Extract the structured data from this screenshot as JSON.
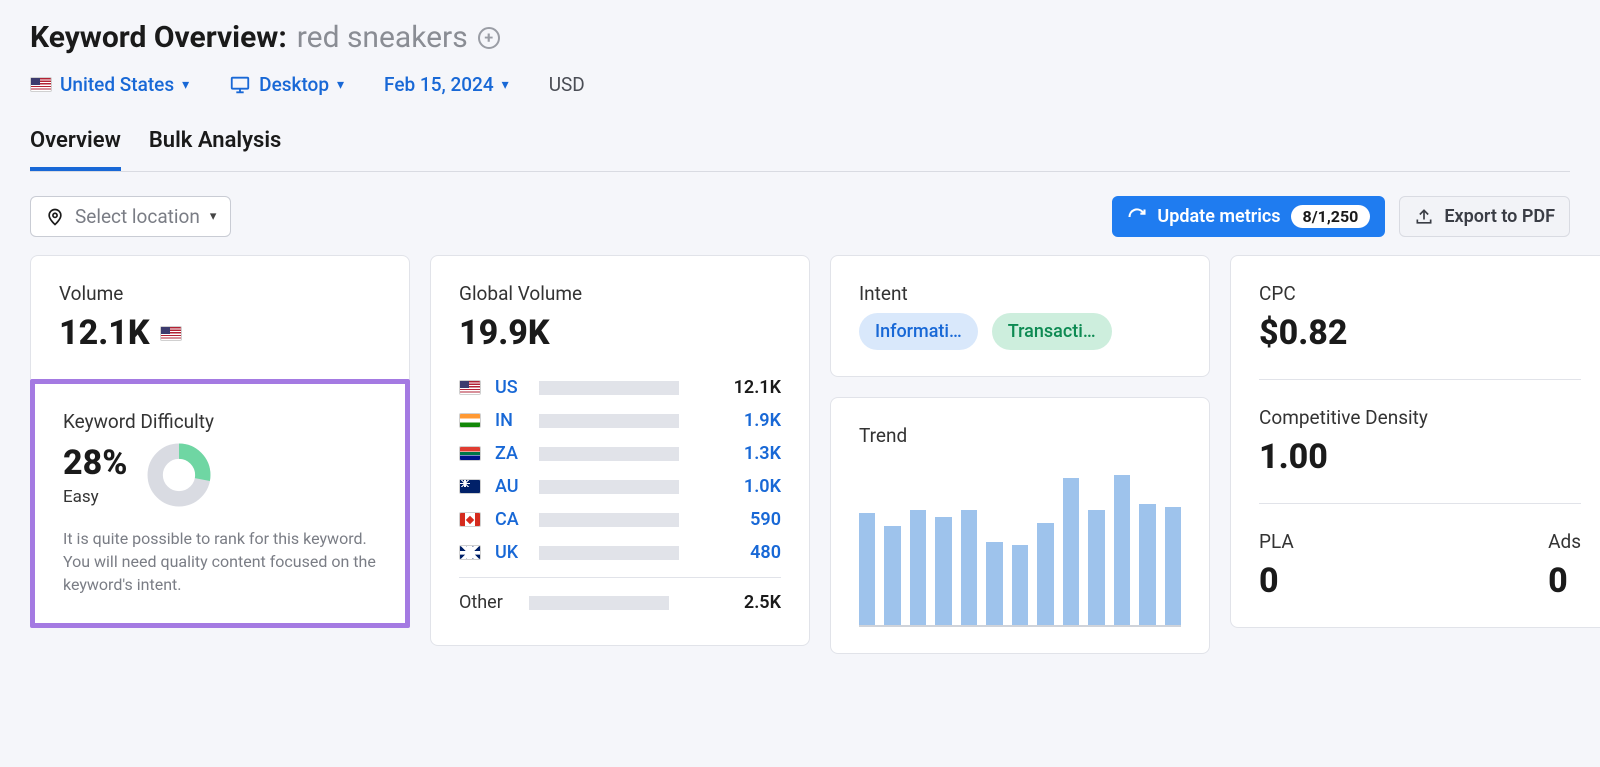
{
  "header": {
    "title_prefix": "Keyword Overview:",
    "keyword": "red sneakers"
  },
  "filters": {
    "country": "United States",
    "device": "Desktop",
    "date": "Feb 15, 2024",
    "currency": "USD"
  },
  "tabs": [
    {
      "label": "Overview",
      "active": true
    },
    {
      "label": "Bulk Analysis",
      "active": false
    }
  ],
  "toolbar": {
    "select_location": "Select location",
    "update_metrics": "Update metrics",
    "update_badge": "8/1,250",
    "export": "Export to PDF"
  },
  "volume": {
    "title": "Volume",
    "value": "12.1K",
    "flag_class": "flag-us"
  },
  "keyword_difficulty": {
    "title": "Keyword Difficulty",
    "value": "28%",
    "label": "Easy",
    "description": "It is quite possible to rank for this keyword. You will need quality content focused on the keyword's intent.",
    "donut": {
      "percent": 28,
      "color": "#6fd6a3",
      "track": "#d9dbe2"
    },
    "highlight_border": "#a47ae2"
  },
  "global_volume": {
    "title": "Global Volume",
    "value": "19.9K",
    "max": 12100,
    "bar_color": "#1868d6",
    "track_color": "#e1e3e9",
    "countries": [
      {
        "code": "US",
        "flag_class": "flag-us",
        "value": "12.1K",
        "num": 12100,
        "link": false
      },
      {
        "code": "IN",
        "flag_class": "flag-in",
        "value": "1.9K",
        "num": 1900,
        "link": true
      },
      {
        "code": "ZA",
        "flag_class": "flag-za",
        "value": "1.3K",
        "num": 1300,
        "link": true
      },
      {
        "code": "AU",
        "flag_class": "flag-au",
        "value": "1.0K",
        "num": 1000,
        "link": true
      },
      {
        "code": "CA",
        "flag_class": "flag-ca",
        "value": "590",
        "num": 590,
        "link": true
      },
      {
        "code": "UK",
        "flag_class": "flag-uk",
        "value": "480",
        "num": 480,
        "link": true
      }
    ],
    "other": {
      "label": "Other",
      "value": "2.5K",
      "num": 2500
    }
  },
  "intent": {
    "title": "Intent",
    "badges": [
      {
        "label": "Informati…",
        "bg": "#d9e8fb",
        "color": "#1868d6"
      },
      {
        "label": "Transacti…",
        "bg": "#cdeedd",
        "color": "#0d8a52"
      }
    ]
  },
  "trend": {
    "title": "Trend",
    "bar_color": "#9ec3ec",
    "values": [
      70,
      62,
      72,
      68,
      72,
      52,
      50,
      64,
      92,
      72,
      94,
      76,
      74
    ]
  },
  "cpc": {
    "title": "CPC",
    "value": "$0.82",
    "cd_title": "Competitive Density",
    "cd_value": "1.00",
    "pla_title": "PLA",
    "pla_value": "0",
    "ads_title": "Ads",
    "ads_value": "0"
  },
  "colors": {
    "link": "#1868d6",
    "primary_btn": "#1f7cf0"
  }
}
